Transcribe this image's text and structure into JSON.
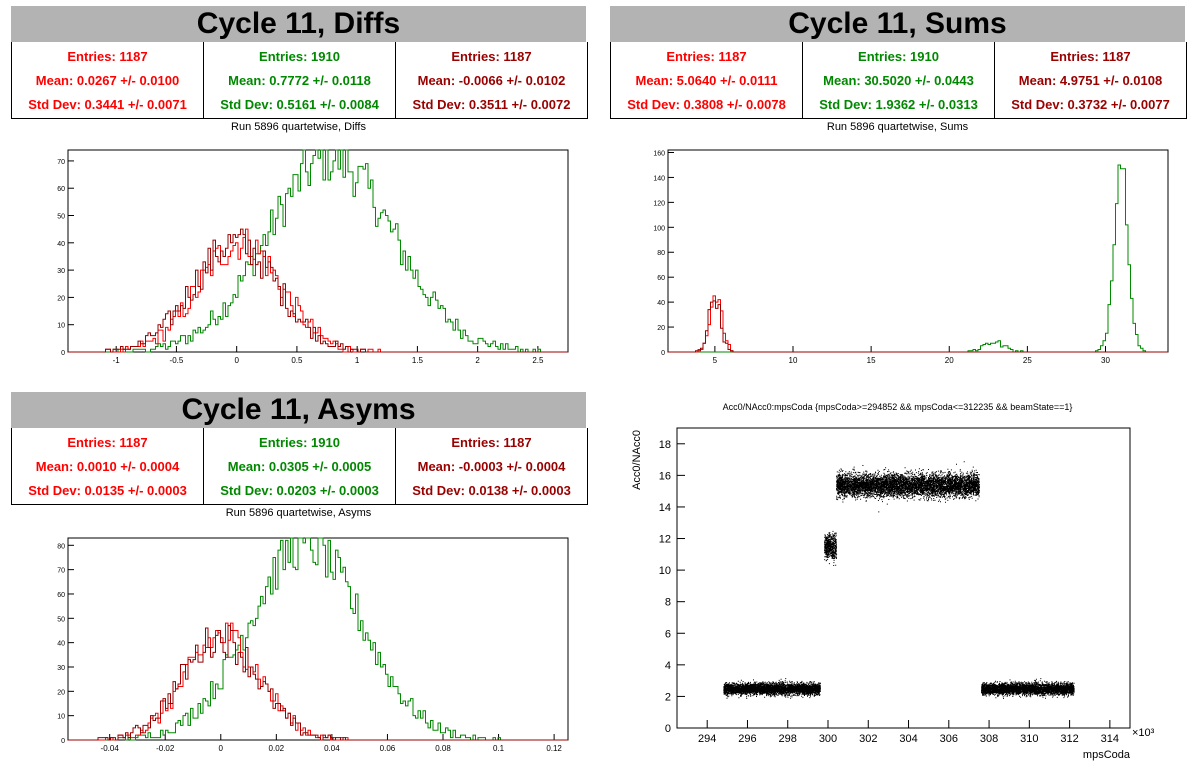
{
  "colors": {
    "red": "#ff0000",
    "green": "#008800",
    "darkred": "#990000",
    "title_bg": "#b3b3b3"
  },
  "panels": [
    {
      "title": "Cycle 11, Diffs",
      "subtitle": "Run 5896 quartetwise, Diffs",
      "stats": [
        {
          "entries": "Entries: 1187",
          "mean": "Mean: 0.0267 +/- 0.0100",
          "std": "Std Dev: 0.3441 +/- 0.0071"
        },
        {
          "entries": "Entries: 1910",
          "mean": "Mean: 0.7772 +/- 0.0118",
          "std": "Std Dev: 0.5161 +/- 0.0084"
        },
        {
          "entries": "Entries: 1187",
          "mean": "Mean: -0.0066 +/- 0.0102",
          "std": "Std Dev: 0.3511 +/- 0.0072"
        }
      ]
    },
    {
      "title": "Cycle 11, Sums",
      "subtitle": "Run 5896 quartetwise, Sums",
      "stats": [
        {
          "entries": "Entries: 1187",
          "mean": "Mean: 5.0640 +/- 0.0111",
          "std": "Std Dev: 0.3808 +/- 0.0078"
        },
        {
          "entries": "Entries: 1910",
          "mean": "Mean: 30.5020 +/- 0.0443",
          "std": "Std Dev: 1.9362 +/- 0.0313"
        },
        {
          "entries": "Entries: 1187",
          "mean": "Mean: 4.9751 +/- 0.0108",
          "std": "Std Dev: 0.3732 +/- 0.0077"
        }
      ]
    },
    {
      "title": "Cycle 11, Asyms",
      "subtitle": "Run 5896 quartetwise, Asyms",
      "stats": [
        {
          "entries": "Entries: 1187",
          "mean": "Mean: 0.0010 +/- 0.0004",
          "std": "Std Dev: 0.0135 +/- 0.0003"
        },
        {
          "entries": "Entries: 1910",
          "mean": "Mean: 0.0305 +/- 0.0005",
          "std": "Std Dev: 0.0203 +/- 0.0003"
        },
        {
          "entries": "Entries: 1187",
          "mean": "Mean: -0.0003 +/- 0.0004",
          "std": "Std Dev: 0.0138 +/- 0.0003"
        }
      ]
    }
  ],
  "scatter_title": "Acc0/NAcc0:mpsCoda {mpsCoda>=294852 && mpsCoda<=312235 && beamState==1}",
  "chart_data": [
    {
      "type": "histogram",
      "title": "Run 5896 quartetwise, Diffs",
      "xlim": [
        -1.4,
        2.75
      ],
      "ylim": [
        0,
        74
      ],
      "xticks": [
        -1,
        -0.5,
        0,
        0.5,
        1,
        1.5,
        2,
        2.5
      ],
      "xtick_labels": [
        "-1",
        "-0.5",
        "0",
        "0.5",
        "1",
        "1.5",
        "2",
        "2.5"
      ],
      "yticks": [
        0,
        10,
        20,
        30,
        40,
        50,
        60,
        70
      ],
      "series": [
        {
          "color": "green",
          "peak_x": 0.78,
          "peak_y": 71,
          "sigma": 0.52,
          "entries": 1910
        },
        {
          "color": "red",
          "peak_x": 0.03,
          "peak_y": 40,
          "sigma": 0.34,
          "entries": 1187
        },
        {
          "color": "darkred",
          "peak_x": -0.01,
          "peak_y": 40,
          "sigma": 0.35,
          "entries": 1187
        }
      ]
    },
    {
      "type": "histogram",
      "title": "Run 5896 quartetwise, Sums",
      "xlim": [
        2,
        34
      ],
      "ylim": [
        0,
        162
      ],
      "xticks": [
        5,
        10,
        15,
        20,
        25,
        30
      ],
      "xtick_labels": [
        "5",
        "10",
        "15",
        "20",
        "25",
        "30"
      ],
      "yticks": [
        0,
        20,
        40,
        60,
        80,
        100,
        120,
        140,
        160
      ],
      "series": [
        {
          "color": "green",
          "peak_x": 31.0,
          "peak_y": 156,
          "sigma": 0.45,
          "entries": 1910,
          "secondary_peak_x": 22.8,
          "secondary_peak_y": 8
        },
        {
          "color": "red",
          "peak_x": 5.06,
          "peak_y": 47,
          "sigma": 0.38,
          "entries": 1187
        },
        {
          "color": "darkred",
          "peak_x": 4.98,
          "peak_y": 45,
          "sigma": 0.37,
          "entries": 1187
        }
      ]
    },
    {
      "type": "histogram",
      "title": "Run 5896 quartetwise, Asyms",
      "xlim": [
        -0.055,
        0.125
      ],
      "ylim": [
        0,
        83
      ],
      "xticks": [
        -0.04,
        -0.02,
        0,
        0.02,
        0.04,
        0.06,
        0.08,
        0.1,
        0.12
      ],
      "xtick_labels": [
        "-0.04",
        "-0.02",
        "0",
        "0.02",
        "0.04",
        "0.06",
        "0.08",
        "0.1",
        "0.12"
      ],
      "yticks": [
        0,
        10,
        20,
        30,
        40,
        50,
        60,
        70,
        80
      ],
      "series": [
        {
          "color": "green",
          "peak_x": 0.0305,
          "peak_y": 80,
          "sigma": 0.0203,
          "entries": 1910
        },
        {
          "color": "red",
          "peak_x": 0.001,
          "peak_y": 43,
          "sigma": 0.0135,
          "entries": 1187
        },
        {
          "color": "darkred",
          "peak_x": -0.0003,
          "peak_y": 42,
          "sigma": 0.0138,
          "entries": 1187
        }
      ]
    },
    {
      "type": "scatter",
      "title": "Acc0/NAcc0:mpsCoda {mpsCoda>=294852 && mpsCoda<=312235 && beamState==1}",
      "xlabel": "mpsCoda",
      "ylabel": "Acc0/NAcc0",
      "x_multiplier": "×10³",
      "xlim": [
        292.5,
        315
      ],
      "ylim": [
        0,
        19
      ],
      "xticks": [
        294,
        296,
        298,
        300,
        302,
        304,
        306,
        308,
        310,
        312,
        314
      ],
      "xtick_labels": [
        "294",
        "296",
        "298",
        "300",
        "302",
        "304",
        "306",
        "308",
        "310",
        "312",
        "314"
      ],
      "yticks": [
        0,
        2,
        4,
        6,
        8,
        10,
        12,
        14,
        16,
        18
      ],
      "ytick_labels": [
        "0",
        "2",
        "4",
        "6",
        "8",
        "10",
        "12",
        "14",
        "16",
        "18"
      ],
      "clusters": [
        {
          "x_range": [
            294.8,
            299.6
          ],
          "y_center": 2.5,
          "y_spread": 0.35
        },
        {
          "x_range": [
            299.8,
            300.4
          ],
          "y_center": 11.5,
          "y_spread": 0.8
        },
        {
          "x_range": [
            300.4,
            307.5
          ],
          "y_center": 15.4,
          "y_spread": 0.7
        },
        {
          "x_range": [
            307.6,
            312.2
          ],
          "y_center": 2.5,
          "y_spread": 0.35
        }
      ]
    }
  ]
}
